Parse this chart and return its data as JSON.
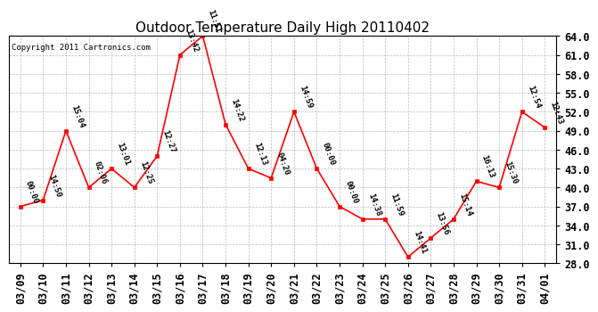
{
  "title": "Outdoor Temperature Daily High 20110402",
  "copyright_text": "Copyright 2011 Cartronics.com",
  "dates": [
    "03/09",
    "03/10",
    "03/11",
    "03/12",
    "03/13",
    "03/14",
    "03/15",
    "03/16",
    "03/17",
    "03/18",
    "03/19",
    "03/20",
    "03/21",
    "03/22",
    "03/23",
    "03/24",
    "03/25",
    "03/26",
    "03/27",
    "03/28",
    "03/29",
    "03/30",
    "03/31",
    "04/01"
  ],
  "values": [
    37.0,
    38.0,
    49.0,
    40.0,
    43.0,
    40.0,
    45.0,
    61.0,
    64.0,
    50.0,
    43.0,
    41.5,
    52.0,
    43.0,
    37.0,
    35.0,
    35.0,
    29.0,
    32.0,
    35.0,
    41.0,
    40.0,
    52.0,
    49.5
  ],
  "times": [
    "00:00",
    "14:50",
    "15:04",
    "02:06",
    "13:01",
    "12:25",
    "12:27",
    "13:42",
    "11:51",
    "14:22",
    "12:13",
    "04:20",
    "14:59",
    "00:00",
    "00:00",
    "14:38",
    "11:59",
    "14:41",
    "13:56",
    "15:14",
    "16:13",
    "15:30",
    "12:54",
    "12:43"
  ],
  "ylim": [
    28.0,
    64.0
  ],
  "yticks": [
    28.0,
    31.0,
    34.0,
    37.0,
    40.0,
    43.0,
    46.0,
    49.0,
    52.0,
    55.0,
    58.0,
    61.0,
    64.0
  ],
  "line_color": "#ff0000",
  "marker_color": "#ff0000",
  "bg_color": "#ffffff",
  "grid_color": "#aaaaaa",
  "title_fontsize": 11,
  "label_fontsize": 6.5,
  "tick_fontsize": 8.5,
  "copyright_fontsize": 6.5
}
